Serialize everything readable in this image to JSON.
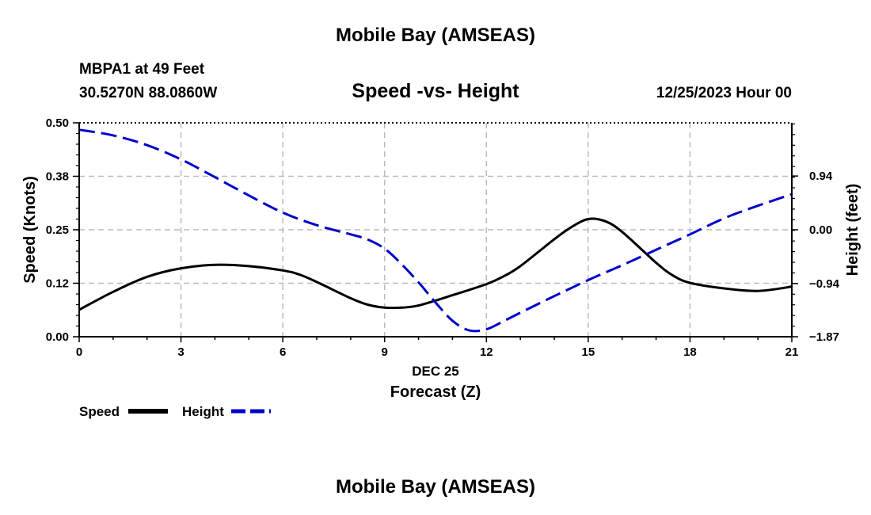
{
  "header": {
    "title": "Mobile Bay (AMSEAS)",
    "station": "MBPA1 at 49 Feet",
    "coords": "30.5270N  88.0860W",
    "subtitle": "Speed -vs- Height",
    "datetime": "12/25/2023 Hour 00"
  },
  "footer": {
    "title": "Mobile Bay (AMSEAS)"
  },
  "chart_data": {
    "type": "line",
    "title": "Speed -vs- Height",
    "xlabel": "Forecast (Z)",
    "xsublabel": "DEC 25",
    "ylabel": "Speed (Knots)",
    "y2label": "Height (feet)",
    "xlim": [
      0,
      21
    ],
    "ylim": [
      0,
      0.5
    ],
    "y2lim": [
      -1.87,
      1.87
    ],
    "xticks": [
      0,
      3,
      6,
      9,
      12,
      15,
      18,
      21
    ],
    "yticks": [
      0.0,
      0.125,
      0.25,
      0.375,
      0.5
    ],
    "ytick_labels": [
      "0.00",
      "0.12",
      "0.25",
      "0.38",
      "0.50"
    ],
    "y2ticks": [
      -1.87,
      -0.94,
      0.0,
      0.94
    ],
    "y2tick_labels": [
      "−1.87",
      "−0.94",
      "0.00",
      "0.94"
    ],
    "grid": true,
    "legend": {
      "position": "bottom-left"
    },
    "series": [
      {
        "name": "Speed",
        "axis": "left",
        "color": "#000000",
        "style": "solid",
        "x": [
          0,
          1,
          2,
          3,
          4,
          5,
          6,
          6.5,
          7,
          8,
          8.5,
          9,
          9.5,
          10,
          11,
          12,
          12.5,
          13,
          14,
          14.5,
          15,
          15.5,
          16,
          17,
          17.5,
          18,
          19,
          20,
          21
        ],
        "values": [
          0.063,
          0.105,
          0.14,
          0.16,
          0.168,
          0.165,
          0.155,
          0.145,
          0.128,
          0.09,
          0.075,
          0.068,
          0.068,
          0.073,
          0.097,
          0.123,
          0.141,
          0.165,
          0.228,
          0.256,
          0.275,
          0.27,
          0.245,
          0.173,
          0.143,
          0.126,
          0.113,
          0.107,
          0.117
        ]
      },
      {
        "name": "Height",
        "axis": "right",
        "color": "#0000cc",
        "style": "dashed",
        "x": [
          0,
          1,
          2,
          3,
          4,
          5,
          6,
          7,
          8,
          8.5,
          9,
          9.5,
          10,
          10.5,
          11,
          11.5,
          12,
          12.5,
          13,
          14,
          15,
          16,
          17,
          18,
          19,
          20,
          21
        ],
        "values": [
          1.75,
          1.65,
          1.48,
          1.23,
          0.92,
          0.6,
          0.3,
          0.08,
          -0.08,
          -0.17,
          -0.33,
          -0.6,
          -0.92,
          -1.27,
          -1.59,
          -1.76,
          -1.74,
          -1.6,
          -1.45,
          -1.16,
          -0.88,
          -0.62,
          -0.35,
          -0.08,
          0.2,
          0.42,
          0.62
        ]
      }
    ]
  }
}
